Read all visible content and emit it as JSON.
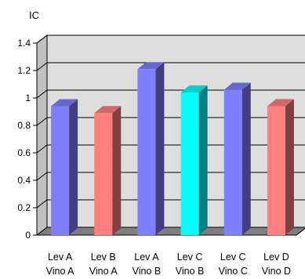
{
  "chart_data": {
    "type": "bar",
    "ylabel": "IC",
    "xlabel": "",
    "title": "",
    "ylim": [
      0,
      1.4
    ],
    "yticks": [
      "0",
      "0.2",
      "0.4",
      "0.6",
      "0.8",
      "1",
      "1.2",
      "1.4"
    ],
    "grid": true,
    "categories": [
      [
        "Lev A",
        "Vino A"
      ],
      [
        "Lev B",
        "Vino A"
      ],
      [
        "Lev A",
        "Vino B"
      ],
      [
        "Lev C",
        "Vino B"
      ],
      [
        "Lev C",
        "Vino C"
      ],
      [
        "Lev D",
        "Vino D"
      ]
    ],
    "values": [
      0.94,
      0.89,
      1.21,
      1.04,
      1.06,
      0.94
    ],
    "colors": [
      "#7f7fff",
      "#ff7f7f",
      "#7f7fff",
      "#00ffff",
      "#7f7fff",
      "#ff7f7f"
    ],
    "plot_wall_color": "#dedede",
    "plot_floor_color": "#7f7f7f"
  }
}
